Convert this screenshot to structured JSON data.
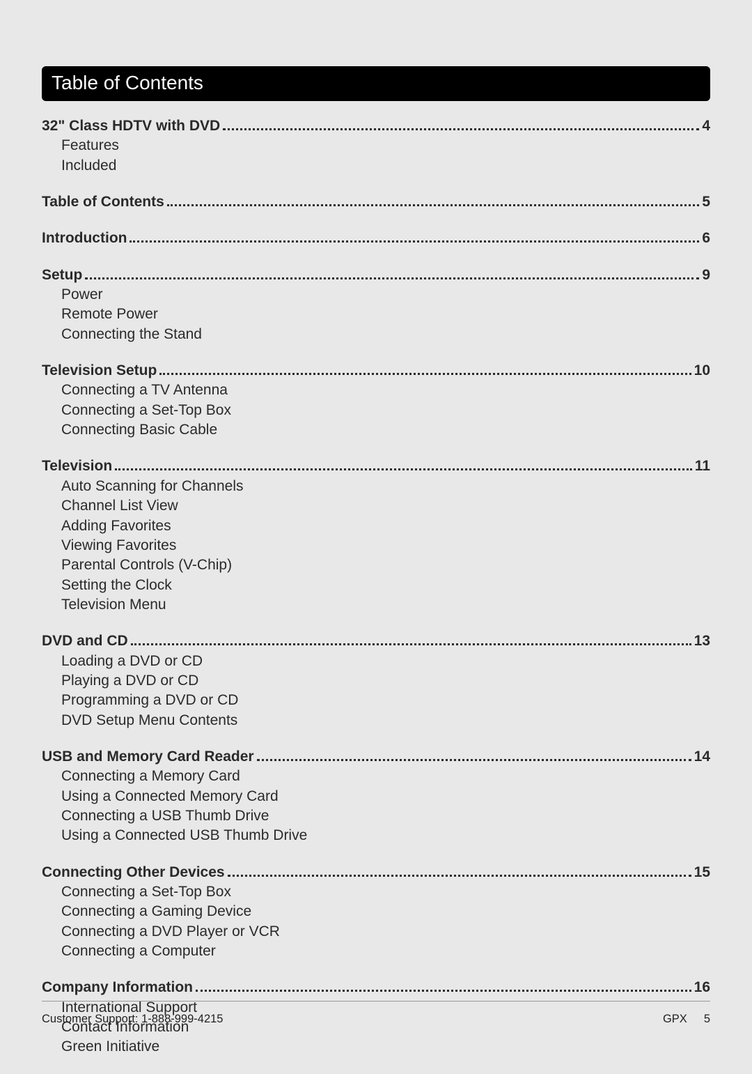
{
  "colors": {
    "page_bg": "#e8e8e8",
    "header_bg": "#000000",
    "header_text": "#ffffff",
    "body_text": "#2a2a2a",
    "footer_rule": "#999999"
  },
  "typography": {
    "header_fontsize_pt": 21,
    "body_fontsize_pt": 16,
    "footer_fontsize_pt": 12,
    "main_weight": 700,
    "sub_weight": 400
  },
  "header": {
    "title": "Table of Contents"
  },
  "toc": [
    {
      "label": "32\" Class HDTV with DVD",
      "page": "4",
      "subs": [
        "Features",
        "Included"
      ]
    },
    {
      "label": "Table of Contents",
      "page": "5",
      "subs": []
    },
    {
      "label": "Introduction",
      "page": "6",
      "subs": []
    },
    {
      "label": "Setup",
      "page": "9",
      "subs": [
        "Power",
        "Remote Power",
        "Connecting the Stand"
      ]
    },
    {
      "label": "Television Setup",
      "page": "10",
      "subs": [
        "Connecting a TV Antenna",
        "Connecting a Set-Top Box",
        "Connecting Basic Cable"
      ]
    },
    {
      "label": "Television",
      "page": "11",
      "subs": [
        "Auto Scanning for Channels",
        "Channel List View",
        "Adding Favorites",
        "Viewing  Favorites",
        "Parental Controls (V-Chip)",
        "Setting the Clock",
        "Television Menu"
      ]
    },
    {
      "label": "DVD and CD",
      "page": "13",
      "subs": [
        "Loading a DVD or CD",
        "Playing a DVD or CD",
        "Programming a DVD or CD",
        "DVD Setup Menu Contents"
      ]
    },
    {
      "label": "USB and Memory Card Reader",
      "page": "14",
      "subs": [
        "Connecting a Memory Card",
        "Using a Connected Memory Card",
        "Connecting a USB Thumb Drive",
        "Using a Connected USB Thumb Drive"
      ]
    },
    {
      "label": "Connecting Other Devices",
      "page": "15",
      "subs": [
        "Connecting a Set-Top Box",
        "Connecting a Gaming Device",
        "Connecting a DVD Player or VCR",
        "Connecting a Computer"
      ]
    },
    {
      "label": "Company Information",
      "page": "16",
      "subs": [
        "International Support",
        "Contact Information",
        "Green Initiative"
      ]
    }
  ],
  "footer": {
    "left": "Customer Support: 1-888-999-4215",
    "brand": "GPX",
    "page_number": "5"
  }
}
